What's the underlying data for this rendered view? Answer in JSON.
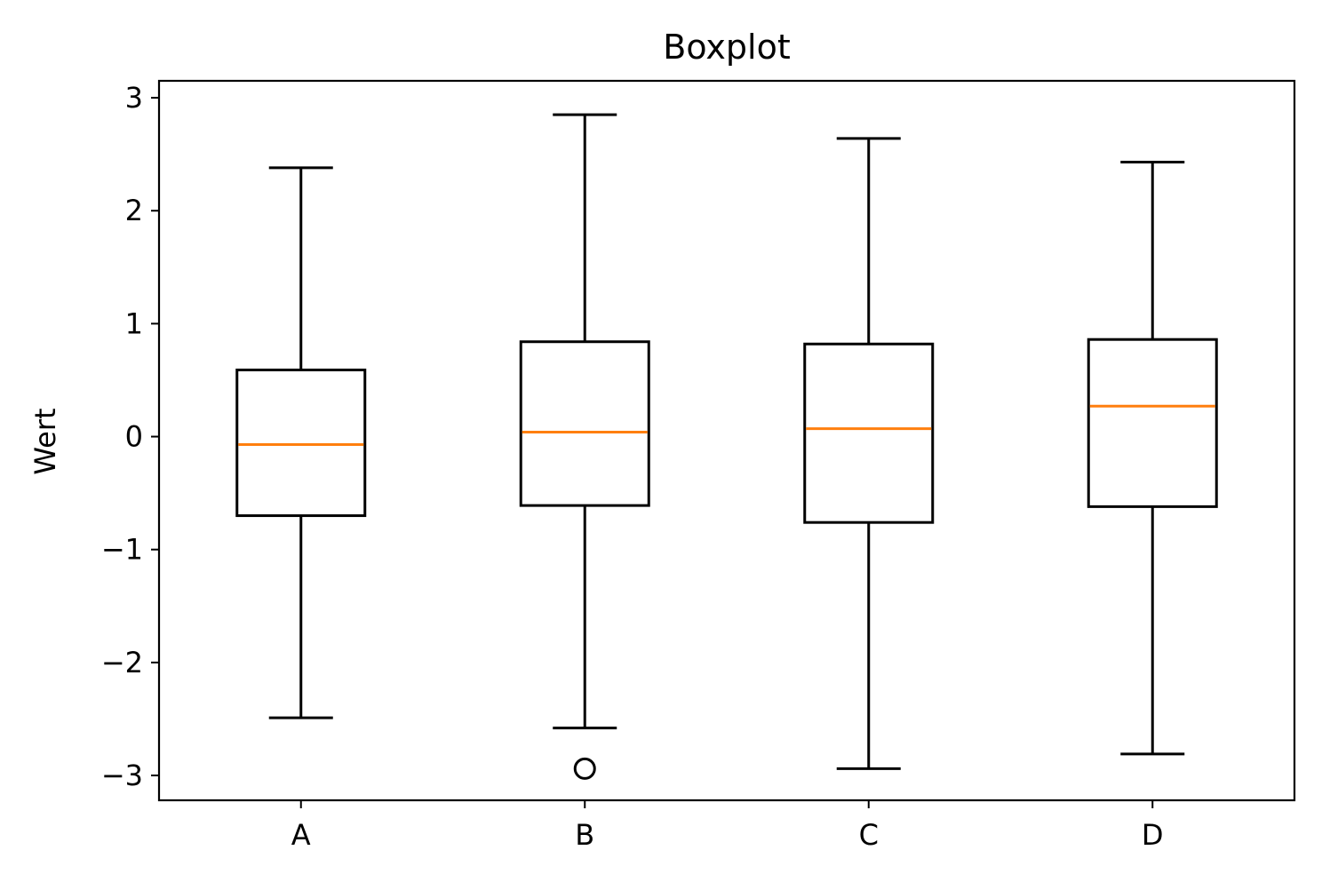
{
  "chart_data": {
    "type": "boxplot",
    "title": "Boxplot",
    "xlabel": "",
    "ylabel": "Wert",
    "ylim": [
      -3.22,
      3.15
    ],
    "yticks": [
      -3,
      -2,
      -1,
      0,
      1,
      2,
      3
    ],
    "ytick_labels": [
      "−3",
      "−2",
      "−1",
      "0",
      "1",
      "2",
      "3"
    ],
    "categories": [
      "A",
      "B",
      "C",
      "D"
    ],
    "boxes": [
      {
        "category": "A",
        "whisker_low": -2.49,
        "q1": -0.7,
        "median": -0.07,
        "q3": 0.59,
        "whisker_high": 2.38,
        "fliers": []
      },
      {
        "category": "B",
        "whisker_low": -2.58,
        "q1": -0.61,
        "median": 0.04,
        "q3": 0.84,
        "whisker_high": 2.85,
        "fliers": [
          -2.94
        ]
      },
      {
        "category": "C",
        "whisker_low": -2.94,
        "q1": -0.76,
        "median": 0.07,
        "q3": 0.82,
        "whisker_high": 2.64,
        "fliers": []
      },
      {
        "category": "D",
        "whisker_low": -2.81,
        "q1": -0.62,
        "median": 0.27,
        "q3": 0.86,
        "whisker_high": 2.43,
        "fliers": []
      }
    ],
    "grid": false,
    "colors": {
      "box": "#000000",
      "median": "#ff7f0e",
      "flier": "#000000"
    }
  }
}
